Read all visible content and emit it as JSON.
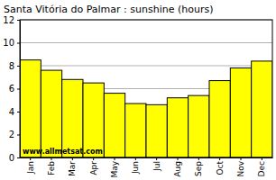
{
  "chart_data": {
    "type": "bar",
    "title": "Santa Vitória do Palmar : sunshine (hours)",
    "categories": [
      "Jan",
      "Feb",
      "Mar",
      "Apr",
      "May",
      "Jun",
      "Jul",
      "Aug",
      "Sep",
      "Oct",
      "Nov",
      "Dec"
    ],
    "values": [
      8.5,
      7.6,
      6.8,
      6.5,
      5.6,
      4.7,
      4.6,
      5.2,
      5.4,
      6.7,
      7.8,
      8.4
    ],
    "color": "#ffff00",
    "ylim": [
      0,
      12
    ],
    "yticks": [
      0,
      2,
      4,
      6,
      8,
      10,
      12
    ],
    "grid": true,
    "annotations": [
      "www.allmetsat.com"
    ]
  }
}
